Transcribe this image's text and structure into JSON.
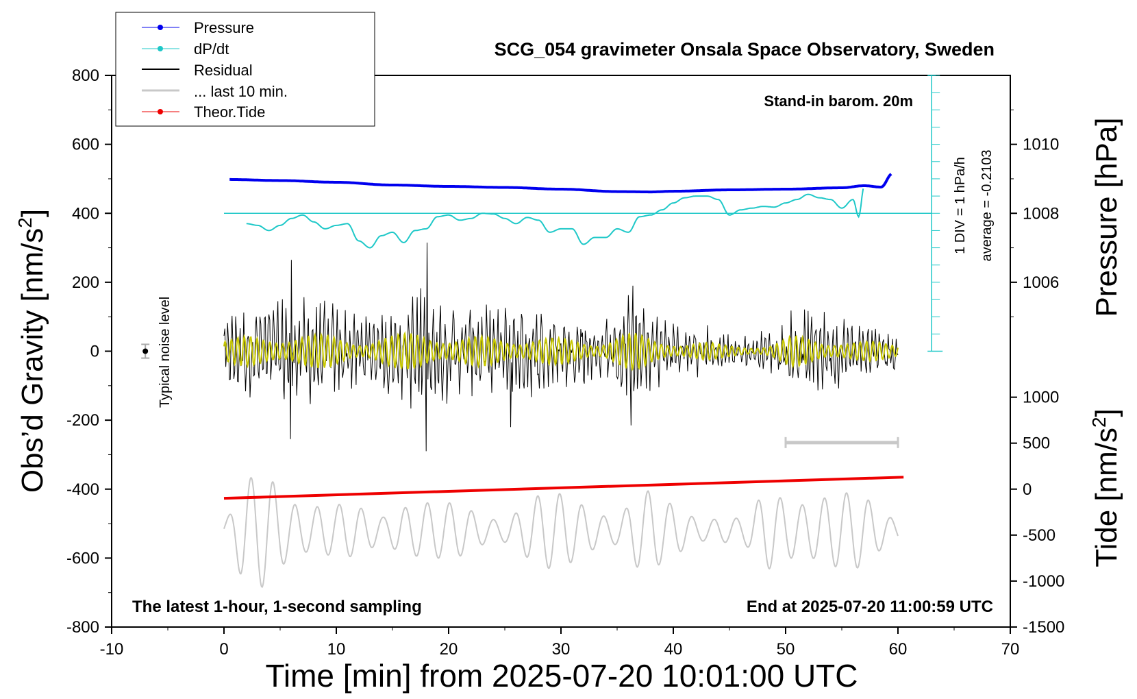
{
  "chart_data": {
    "type": "line",
    "title": "SCG_054 gravimeter Onsala Space Observatory, Sweden",
    "xlabel": "Time [min] from 2025-07-20 10:01:00 UTC",
    "ylabel_left": "Obs’d Gravity [nm/s",
    "ylabel_left_sup": "2",
    "ylabel_left_end": "]",
    "ylabel_right_top": "Pressure [hPa]",
    "ylabel_right_bottom": "Tide [nm/s",
    "ylabel_right_bottom_sup": "2",
    "ylabel_right_bottom_end": "]",
    "xlim": [
      -10,
      70
    ],
    "ylim": [
      -800,
      800
    ],
    "x_ticks": [
      "-10",
      "0",
      "10",
      "20",
      "30",
      "40",
      "50",
      "60",
      "70"
    ],
    "y_ticks_left": [
      "800",
      "600",
      "400",
      "200",
      "0",
      "-200",
      "-400",
      "-600",
      "-800"
    ],
    "y_ticks_pressure": [
      "1010",
      "1008",
      "1006"
    ],
    "y_ticks_tide": [
      "1000",
      "500",
      "0",
      "-500",
      "-1000",
      "-1500"
    ],
    "annotations": {
      "barometer": "Stand-in barom. 20m",
      "scale_div": "1 DIV = 1 hPa/h",
      "scale_avg": "average = -0.2103",
      "noise": "Typical noise level",
      "sampling": "The latest 1-hour, 1-second sampling",
      "end_time": "End at 2025-07-20 11:00:59 UTC"
    },
    "legend": {
      "placement": "top-left",
      "entries": [
        "Pressure",
        "dP/dt",
        "Residual",
        "... last 10 min.",
        "Theor.Tide"
      ]
    },
    "colors": {
      "pressure": "#0000ee",
      "dpdt": "#1ec8c8",
      "residual": "#000000",
      "last10": "#c8c8c8",
      "tide": "#ee0000",
      "overlay": "#c8c800"
    },
    "series": [
      {
        "name": "Pressure",
        "unit": "hPa",
        "x": [
          0.5,
          5,
          10,
          15,
          20,
          25,
          30,
          35,
          38,
          40,
          45,
          50,
          55,
          57,
          58.5,
          59.5
        ],
        "values": [
          1008.98,
          1008.95,
          1008.9,
          1008.82,
          1008.78,
          1008.75,
          1008.7,
          1008.63,
          1008.62,
          1008.64,
          1008.68,
          1008.7,
          1008.74,
          1008.8,
          1008.76,
          1009.15
        ]
      },
      {
        "name": "dP/dt",
        "unit": "gravity axis equivalent",
        "x": [
          2,
          3,
          4,
          5,
          6,
          7,
          8,
          9,
          10,
          11,
          12,
          13,
          14,
          15,
          16,
          17,
          18,
          19,
          20,
          21,
          22,
          23,
          24,
          25,
          26,
          27,
          28,
          29,
          30,
          31,
          32,
          33,
          34,
          35,
          36,
          37,
          38,
          39,
          40,
          41,
          42,
          43,
          44,
          45,
          46,
          47,
          48,
          49,
          50,
          51,
          52,
          53,
          54,
          55,
          56,
          56.5,
          57
        ],
        "values": [
          370,
          365,
          350,
          365,
          385,
          395,
          375,
          355,
          365,
          370,
          320,
          300,
          335,
          345,
          315,
          350,
          355,
          390,
          395,
          380,
          385,
          400,
          398,
          385,
          370,
          388,
          380,
          345,
          355,
          355,
          310,
          330,
          330,
          355,
          345,
          390,
          395,
          410,
          430,
          445,
          450,
          450,
          440,
          395,
          410,
          415,
          420,
          418,
          430,
          440,
          455,
          445,
          440,
          415,
          440,
          390,
          480
        ]
      },
      {
        "name": "Residual",
        "unit": "nm/s2",
        "x_range": [
          0,
          60
        ],
        "envelope": [
          {
            "x": 0,
            "amp": 120
          },
          {
            "x": 3,
            "amp": 140
          },
          {
            "x": 6,
            "amp": 180
          },
          {
            "x": 9,
            "amp": 150
          },
          {
            "x": 12,
            "amp": 120
          },
          {
            "x": 15,
            "amp": 150
          },
          {
            "x": 18,
            "amp": 200
          },
          {
            "x": 21,
            "amp": 130
          },
          {
            "x": 24,
            "amp": 140
          },
          {
            "x": 27,
            "amp": 140
          },
          {
            "x": 30,
            "amp": 120
          },
          {
            "x": 33,
            "amp": 110
          },
          {
            "x": 36,
            "amp": 170
          },
          {
            "x": 39,
            "amp": 110
          },
          {
            "x": 42,
            "amp": 90
          },
          {
            "x": 45,
            "amp": 60
          },
          {
            "x": 48,
            "amp": 60
          },
          {
            "x": 51,
            "amp": 140
          },
          {
            "x": 54,
            "amp": 120
          },
          {
            "x": 57,
            "amp": 90
          },
          {
            "x": 60,
            "amp": 80
          }
        ],
        "peaks": [
          {
            "x": 6.0,
            "y": 265
          },
          {
            "x": 18.1,
            "y": 315
          },
          {
            "x": 18.0,
            "y": -290
          },
          {
            "x": 36.2,
            "y": -215
          },
          {
            "x": 5.9,
            "y": -255
          },
          {
            "x": 25.5,
            "y": -220
          },
          {
            "x": 36.4,
            "y": 190
          }
        ]
      },
      {
        "name": "... last 10 min.",
        "unit": "gravity axis equivalent",
        "x_range": [
          0,
          60
        ],
        "values_center": -520,
        "range_bar": {
          "x": [
            50,
            60
          ],
          "y": -265
        }
      },
      {
        "name": "Theor.Tide",
        "unit": "nm/s2",
        "x": [
          0,
          60.5
        ],
        "values": [
          -100,
          130
        ]
      }
    ],
    "noise_marker": {
      "x": -7,
      "y": 0,
      "err": 20
    },
    "dpdt_scale": {
      "x": 63,
      "zero_gravity": 400,
      "divisions": 16
    }
  }
}
